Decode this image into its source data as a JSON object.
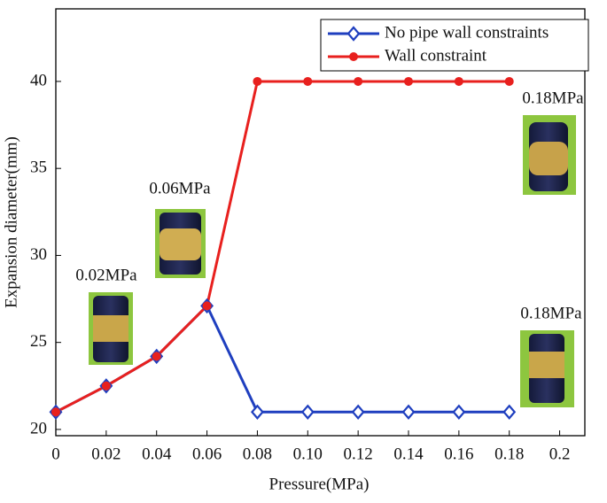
{
  "chart_data": {
    "type": "line",
    "x_label": "Pressure(MPa)",
    "y_label": "Expansion diameter(mm)",
    "x": [
      0,
      0.02,
      0.04,
      0.06,
      0.08,
      0.1,
      0.12,
      0.14,
      0.16,
      0.18
    ],
    "series": [
      {
        "name": "No pipe wall constraints",
        "color": "#1f3fbf",
        "marker": "diamond-open",
        "values": [
          21,
          22.5,
          24.2,
          27.1,
          21,
          21,
          21,
          21,
          21,
          21
        ]
      },
      {
        "name": "Wall constraint",
        "color": "#e8201e",
        "marker": "dot",
        "values": [
          21,
          22.5,
          24.2,
          27.1,
          40,
          40,
          40,
          40,
          40,
          40
        ]
      }
    ],
    "xlim": [
      0,
      0.21
    ],
    "ylim": [
      19.64,
      44.17
    ],
    "xticks": [
      0,
      0.02,
      0.04,
      0.06,
      0.08,
      {
        "value": 0.1,
        "label": "0.10"
      },
      0.12,
      0.14,
      0.16,
      0.18,
      0.2
    ],
    "yticks": [
      20,
      25,
      30,
      35,
      40
    ],
    "grid": false,
    "legend": "top-right",
    "annotations": [
      "0.02MPa",
      "0.06MPa",
      "0.18MPa",
      "0.18MPa"
    ]
  }
}
